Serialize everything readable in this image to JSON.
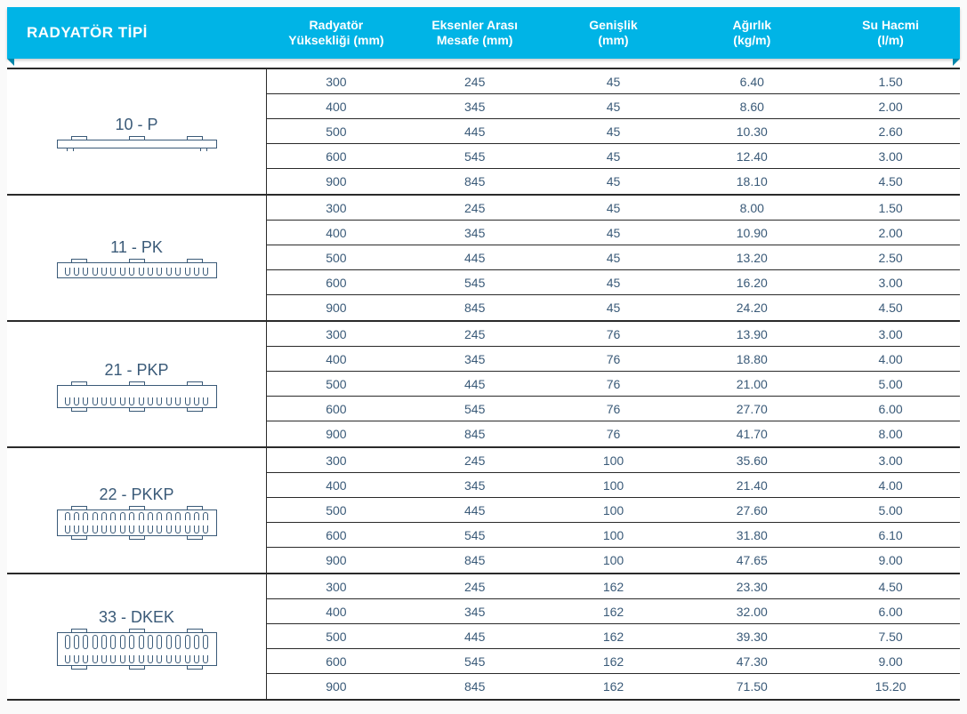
{
  "header": {
    "type_label": "RADYATÖR TİPİ",
    "columns": [
      "Radyatör\nYüksekliği (mm)",
      "Eksenler Arası\nMesafe (mm)",
      "Genişlik\n(mm)",
      "Ağırlık\n(kg/m)",
      "Su Hacmi\n(l/m)"
    ]
  },
  "colors": {
    "header_bg": "#00b4e6",
    "header_fold": "#0086aa",
    "text": "#3a5a78",
    "rule": "#2a2a2a",
    "page_bg": "#fafafa"
  },
  "groups": [
    {
      "label": "10 - P",
      "diagram": "p",
      "rows": [
        [
          "300",
          "245",
          "45",
          "6.40",
          "1.50"
        ],
        [
          "400",
          "345",
          "45",
          "8.60",
          "2.00"
        ],
        [
          "500",
          "445",
          "45",
          "10.30",
          "2.60"
        ],
        [
          "600",
          "545",
          "45",
          "12.40",
          "3.00"
        ],
        [
          "900",
          "845",
          "45",
          "18.10",
          "4.50"
        ]
      ]
    },
    {
      "label": "11 - PK",
      "diagram": "pk",
      "rows": [
        [
          "300",
          "245",
          "45",
          "8.00",
          "1.50"
        ],
        [
          "400",
          "345",
          "45",
          "10.90",
          "2.00"
        ],
        [
          "500",
          "445",
          "45",
          "13.20",
          "2.50"
        ],
        [
          "600",
          "545",
          "45",
          "16.20",
          "3.00"
        ],
        [
          "900",
          "845",
          "45",
          "24.20",
          "4.50"
        ]
      ]
    },
    {
      "label": "21 - PKP",
      "diagram": "pkp",
      "rows": [
        [
          "300",
          "245",
          "76",
          "13.90",
          "3.00"
        ],
        [
          "400",
          "345",
          "76",
          "18.80",
          "4.00"
        ],
        [
          "500",
          "445",
          "76",
          "21.00",
          "5.00"
        ],
        [
          "600",
          "545",
          "76",
          "27.70",
          "6.00"
        ],
        [
          "900",
          "845",
          "76",
          "41.70",
          "8.00"
        ]
      ]
    },
    {
      "label": "22 - PKKP",
      "diagram": "pkkp",
      "rows": [
        [
          "300",
          "245",
          "100",
          "35.60",
          "3.00"
        ],
        [
          "400",
          "345",
          "100",
          "21.40",
          "4.00"
        ],
        [
          "500",
          "445",
          "100",
          "27.60",
          "5.00"
        ],
        [
          "600",
          "545",
          "100",
          "31.80",
          "6.10"
        ],
        [
          "900",
          "845",
          "100",
          "47.65",
          "9.00"
        ]
      ]
    },
    {
      "label": "33 - DKEK",
      "diagram": "dkek",
      "rows": [
        [
          "300",
          "245",
          "162",
          "23.30",
          "4.50"
        ],
        [
          "400",
          "345",
          "162",
          "32.00",
          "6.00"
        ],
        [
          "500",
          "445",
          "162",
          "39.30",
          "7.50"
        ],
        [
          "600",
          "545",
          "162",
          "47.30",
          "9.00"
        ],
        [
          "900",
          "845",
          "162",
          "71.50",
          "15.20"
        ]
      ]
    }
  ]
}
